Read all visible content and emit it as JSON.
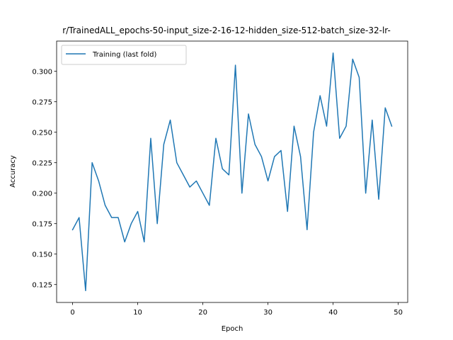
{
  "chart_data": {
    "type": "line",
    "title": "r/TrainedALL_epochs-50-input_size-2-16-12-hidden_size-512-batch_size-32-lr-",
    "xlabel": "Epoch",
    "ylabel": "Accuracy",
    "xlim": [
      -2.45,
      51.45
    ],
    "ylim": [
      0.1103,
      0.3248
    ],
    "x_ticks": [
      0,
      10,
      20,
      30,
      40,
      50
    ],
    "y_ticks": [
      0.125,
      0.15,
      0.175,
      0.2,
      0.225,
      0.25,
      0.275,
      0.3
    ],
    "y_tick_labels": [
      "0.125",
      "0.150",
      "0.175",
      "0.200",
      "0.225",
      "0.250",
      "0.275",
      "0.300"
    ],
    "grid": false,
    "legend_position": "top-left",
    "series": [
      {
        "name": "Training (last fold)",
        "color": "#1f77b4",
        "x": [
          0,
          1,
          2,
          3,
          4,
          5,
          6,
          7,
          8,
          9,
          10,
          11,
          12,
          13,
          14,
          15,
          16,
          17,
          18,
          19,
          20,
          21,
          22,
          23,
          24,
          25,
          26,
          27,
          28,
          29,
          30,
          31,
          32,
          33,
          34,
          35,
          36,
          37,
          38,
          39,
          40,
          41,
          42,
          43,
          44,
          45,
          46,
          47,
          48,
          49
        ],
        "values": [
          0.17,
          0.18,
          0.12,
          0.225,
          0.21,
          0.19,
          0.18,
          0.18,
          0.16,
          0.175,
          0.185,
          0.16,
          0.245,
          0.175,
          0.24,
          0.26,
          0.225,
          0.215,
          0.205,
          0.21,
          0.2,
          0.19,
          0.245,
          0.22,
          0.215,
          0.305,
          0.2,
          0.265,
          0.24,
          0.23,
          0.21,
          0.23,
          0.235,
          0.185,
          0.255,
          0.23,
          0.17,
          0.25,
          0.28,
          0.255,
          0.315,
          0.245,
          0.255,
          0.31,
          0.295,
          0.2,
          0.26,
          0.195,
          0.27,
          0.255
        ]
      }
    ]
  }
}
